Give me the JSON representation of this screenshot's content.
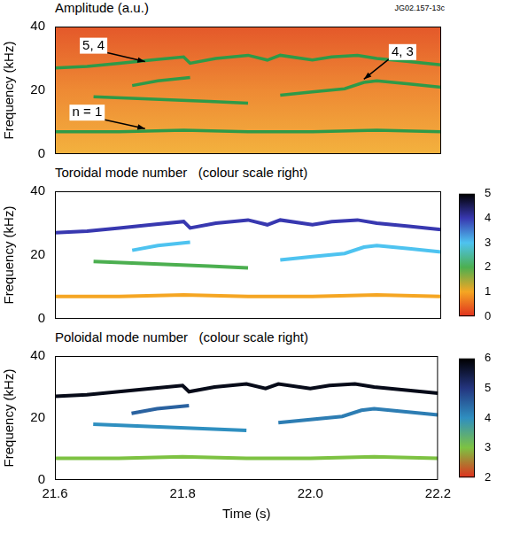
{
  "chart_data": [
    {
      "type": "line",
      "title": "Amplitude (a.u.)",
      "figure_id": "JG02.157-13c",
      "y_label": "Frequency (kHz)",
      "xlim": [
        21.6,
        22.2
      ],
      "xticks": [
        21.6,
        21.8,
        {
          "value": 22,
          "label": "22.0"
        },
        22.2
      ],
      "ylim": [
        0,
        40
      ],
      "yticks": [
        0,
        20,
        40
      ],
      "grid": false,
      "tick_labels": "y",
      "series": [
        {
          "color": "#2e9a48",
          "x": [
            21.6,
            21.65,
            21.7,
            21.75,
            21.8,
            21.81,
            21.85,
            21.9,
            21.93,
            21.95,
            22.0,
            22.03,
            22.07,
            22.1,
            22.15,
            22.2
          ],
          "values": [
            27,
            27.5,
            28.5,
            29.5,
            30.5,
            28.5,
            30,
            31,
            29.5,
            31,
            29.5,
            30.5,
            31,
            30,
            29,
            28
          ]
        },
        {
          "color": "#2e9a48",
          "x": [
            21.72,
            21.76,
            21.81
          ],
          "values": [
            21.5,
            23,
            24
          ]
        },
        {
          "color": "#2e9a48",
          "x": [
            21.66,
            21.72,
            21.78,
            21.84,
            21.9
          ],
          "values": [
            18,
            17.5,
            17,
            16.5,
            16
          ]
        },
        {
          "color": "#2e9a48",
          "x": [
            21.95,
            22.0,
            22.05,
            22.08,
            22.1,
            22.15,
            22.2
          ],
          "values": [
            18.5,
            19.5,
            20.5,
            22.5,
            23,
            22,
            21
          ]
        },
        {
          "color": "#2e9a48",
          "x": [
            21.6,
            21.7,
            21.8,
            21.9,
            22.0,
            22.1,
            22.2
          ],
          "values": [
            7,
            7,
            7.5,
            7,
            7,
            7.5,
            7
          ]
        }
      ],
      "annotations": [
        {
          "text": "5, 4",
          "x": 21.66,
          "y": 34,
          "points_to": [
            21.74,
            29
          ]
        },
        {
          "text": "4, 3",
          "x": 22.14,
          "y": 32,
          "points_to": [
            22.08,
            23.5
          ]
        },
        {
          "text": "n = 1",
          "x": 21.65,
          "y": 13,
          "points_to": [
            21.74,
            8
          ]
        }
      ]
    },
    {
      "type": "line",
      "title": "Toroidal mode number   (colour scale right)",
      "y_label": "Frequency (kHz)",
      "xlim": [
        21.6,
        22.2
      ],
      "xticks": [
        21.6,
        21.8,
        {
          "value": 22,
          "label": "22.0"
        },
        22.2
      ],
      "ylim": [
        0,
        40
      ],
      "yticks": [
        0,
        20,
        40
      ],
      "grid": false,
      "tick_labels": "y",
      "colorbar": {
        "range": [
          0,
          5
        ],
        "ticks": [
          0,
          1,
          2,
          3,
          4,
          5
        ],
        "colors": [
          "#e0301e",
          "#f5a623",
          "#4caf50",
          "#4ec3f0",
          "#3838b0",
          "#000000"
        ]
      },
      "series": [
        {
          "mode_number": 4,
          "x": [
            21.6,
            21.65,
            21.7,
            21.75,
            21.8,
            21.81,
            21.85,
            21.9,
            21.93,
            21.95,
            22.0,
            22.03,
            22.07,
            22.1,
            22.15,
            22.2
          ],
          "values": [
            27,
            27.5,
            28.5,
            29.5,
            30.5,
            28.5,
            30,
            31,
            29.5,
            31,
            29.5,
            30.5,
            31,
            30,
            29,
            28
          ]
        },
        {
          "mode_number": 3,
          "x": [
            21.72,
            21.76,
            21.81
          ],
          "values": [
            21.5,
            23,
            24
          ]
        },
        {
          "mode_number": 2,
          "x": [
            21.66,
            21.72,
            21.78,
            21.84,
            21.9
          ],
          "values": [
            18,
            17.5,
            17,
            16.5,
            16
          ]
        },
        {
          "mode_number": 3,
          "x": [
            21.95,
            22.0,
            22.05,
            22.08,
            22.1,
            22.15,
            22.2
          ],
          "values": [
            18.5,
            19.5,
            20.5,
            22.5,
            23,
            22,
            21
          ]
        },
        {
          "mode_number": 1,
          "x": [
            21.6,
            21.7,
            21.8,
            21.9,
            22.0,
            22.1,
            22.2
          ],
          "values": [
            7,
            7,
            7.5,
            7,
            7,
            7.5,
            7
          ]
        }
      ]
    },
    {
      "type": "line",
      "title": "Poloidal mode number   (colour scale right)",
      "y_label": "Frequency (kHz)",
      "x_label": "Time (s)",
      "xlim": [
        21.6,
        22.2
      ],
      "xticks": [
        21.6,
        21.8,
        {
          "value": 22,
          "label": "22.0"
        },
        22.2
      ],
      "ylim": [
        0,
        40
      ],
      "yticks": [
        0,
        20,
        40
      ],
      "grid": false,
      "tick_labels": true,
      "colorbar": {
        "range": [
          2,
          6
        ],
        "ticks": [
          2,
          3,
          4,
          5,
          6
        ],
        "colors": [
          "#e0301e",
          "#7dc242",
          "#2f8fc0",
          "#24357f",
          "#000000"
        ]
      },
      "series": [
        {
          "mode_number": 5.8,
          "x": [
            21.6,
            21.65,
            21.7,
            21.75,
            21.8,
            21.81,
            21.85,
            21.9,
            21.93,
            21.95,
            22.0,
            22.03,
            22.07,
            22.1,
            22.15,
            22.2
          ],
          "values": [
            27,
            27.5,
            28.5,
            29.5,
            30.5,
            28.5,
            30,
            31,
            29.5,
            31,
            29.5,
            30.5,
            31,
            30,
            29,
            28
          ]
        },
        {
          "mode_number": 4.5,
          "x": [
            21.72,
            21.76,
            21.81
          ],
          "values": [
            21.5,
            23,
            24
          ]
        },
        {
          "mode_number": 4,
          "x": [
            21.66,
            21.72,
            21.78,
            21.84,
            21.9
          ],
          "values": [
            18,
            17.5,
            17,
            16.5,
            16
          ]
        },
        {
          "mode_number": 4.2,
          "x": [
            21.95,
            22.0,
            22.05,
            22.08,
            22.1,
            22.15,
            22.2
          ],
          "values": [
            18.5,
            19.5,
            20.5,
            22.5,
            23,
            22,
            21
          ]
        },
        {
          "mode_number": 3,
          "x": [
            21.6,
            21.7,
            21.8,
            21.9,
            22.0,
            22.1,
            22.2
          ],
          "values": [
            7,
            7,
            7.5,
            7,
            7,
            7.5,
            7
          ]
        }
      ]
    }
  ]
}
